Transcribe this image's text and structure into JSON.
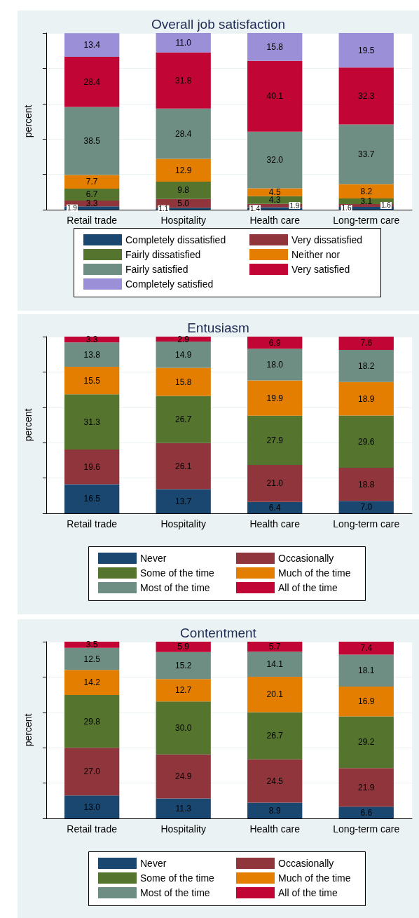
{
  "chart_data": [
    {
      "type": "bar",
      "stacked": true,
      "title": "Overall job satisfaction",
      "ylabel": "percent",
      "categories": [
        "Retail trade",
        "Hospitality",
        "Health care",
        "Long-term care"
      ],
      "ylim": [
        0,
        100
      ],
      "yticks": [
        {
          "value": 0,
          "label": null
        },
        {
          "value": 20,
          "label": null
        },
        {
          "value": 40,
          "label": null
        },
        {
          "value": 60,
          "label": null
        },
        {
          "value": 80,
          "label": null
        },
        {
          "value": 100,
          "label": null
        }
      ],
      "tick_labels": "x",
      "grid": "y",
      "legend": "bottom",
      "series": [
        {
          "name": "Completely dissatisfied",
          "color": "#1a476f",
          "values": [
            1.9,
            1.1,
            1.4,
            1.6
          ],
          "value_labels": [
            "1.9",
            "1.1",
            "1.4",
            "1.6"
          ]
        },
        {
          "name": "Very dissatisfied",
          "color": "#90353b",
          "values": [
            3.3,
            5.0,
            1.9,
            1.6
          ],
          "value_labels": [
            "3.3",
            "5.0",
            "1.9",
            "1.6"
          ]
        },
        {
          "name": "Fairly dissatisfied",
          "color": "#55752f",
          "values": [
            6.7,
            9.8,
            4.3,
            3.1
          ],
          "value_labels": [
            "6.7",
            "9.8",
            "4.3",
            "3.1"
          ]
        },
        {
          "name": "Neither nor",
          "color": "#e37e00",
          "values": [
            7.7,
            12.9,
            4.5,
            8.2
          ],
          "value_labels": [
            "7.7",
            "12.9",
            "4.5",
            "8.2"
          ]
        },
        {
          "name": "Fairly satisfied",
          "color": "#6e8e84",
          "values": [
            38.5,
            28.4,
            32.0,
            33.7
          ],
          "value_labels": [
            "38.5",
            "28.4",
            "32.0",
            "33.7"
          ]
        },
        {
          "name": "Very satisfied",
          "color": "#c10534",
          "values": [
            28.4,
            31.8,
            40.1,
            32.3
          ],
          "value_labels": [
            "28.4",
            "31.8",
            "40.1",
            "32.3"
          ]
        },
        {
          "name": "Completely satisfied",
          "color": "#9b8fd8",
          "values": [
            13.4,
            11.0,
            15.8,
            19.5
          ],
          "value_labels": [
            "13.4",
            "11.0",
            "15.8",
            "19.5"
          ]
        }
      ]
    },
    {
      "type": "bar",
      "stacked": true,
      "title": "Entusiasm",
      "ylabel": "percent",
      "categories": [
        "Retail trade",
        "Hospitality",
        "Health care",
        "Long-term care"
      ],
      "ylim": [
        0,
        100
      ],
      "yticks": [
        {
          "value": 0,
          "label": null
        },
        {
          "value": 20,
          "label": null
        },
        {
          "value": 40,
          "label": null
        },
        {
          "value": 60,
          "label": null
        },
        {
          "value": 80,
          "label": null
        },
        {
          "value": 100,
          "label": null
        }
      ],
      "tick_labels": "x",
      "grid": "y",
      "legend": "bottom",
      "series": [
        {
          "name": "Never",
          "color": "#1a476f",
          "values": [
            16.5,
            13.7,
            6.4,
            7.0
          ],
          "value_labels": [
            "16.5",
            "13.7",
            "6.4",
            "7.0"
          ]
        },
        {
          "name": "Occasionally",
          "color": "#90353b",
          "values": [
            19.6,
            26.1,
            21.0,
            18.8
          ],
          "value_labels": [
            "19.6",
            "26.1",
            "21.0",
            "18.8"
          ]
        },
        {
          "name": "Some of the time",
          "color": "#55752f",
          "values": [
            31.3,
            26.7,
            27.9,
            29.6
          ],
          "value_labels": [
            "31.3",
            "26.7",
            "27.9",
            "29.6"
          ]
        },
        {
          "name": "Much of the time",
          "color": "#e37e00",
          "values": [
            15.5,
            15.8,
            19.9,
            18.9
          ],
          "value_labels": [
            "15.5",
            "15.8",
            "19.9",
            "18.9"
          ]
        },
        {
          "name": "Most of the time",
          "color": "#6e8e84",
          "values": [
            13.8,
            14.9,
            18.0,
            18.2
          ],
          "value_labels": [
            "13.8",
            "14.9",
            "18.0",
            "18.2"
          ]
        },
        {
          "name": "All of the time",
          "color": "#c10534",
          "values": [
            3.3,
            2.9,
            6.9,
            7.6
          ],
          "value_labels": [
            "3.3",
            "2.9",
            "6.9",
            "7.6"
          ]
        }
      ]
    },
    {
      "type": "bar",
      "stacked": true,
      "title": "Contentment",
      "ylabel": "percent",
      "categories": [
        "Retail trade",
        "Hospitality",
        "Health care",
        "Long-term care"
      ],
      "ylim": [
        0,
        100
      ],
      "yticks": [
        {
          "value": 0,
          "label": null
        },
        {
          "value": 20,
          "label": null
        },
        {
          "value": 40,
          "label": null
        },
        {
          "value": 60,
          "label": null
        },
        {
          "value": 80,
          "label": null
        },
        {
          "value": 100,
          "label": null
        }
      ],
      "tick_labels": "x",
      "grid": "y",
      "legend": "bottom",
      "series": [
        {
          "name": "Never",
          "color": "#1a476f",
          "values": [
            13.0,
            11.3,
            8.9,
            6.6
          ],
          "value_labels": [
            "13.0",
            "11.3",
            "8.9",
            "6.6"
          ]
        },
        {
          "name": "Occasionally",
          "color": "#90353b",
          "values": [
            27.0,
            24.9,
            24.5,
            21.9
          ],
          "value_labels": [
            "27.0",
            "24.9",
            "24.5",
            "21.9"
          ]
        },
        {
          "name": "Some of the time",
          "color": "#55752f",
          "values": [
            29.8,
            30.0,
            26.7,
            29.2
          ],
          "value_labels": [
            "29.8",
            "30.0",
            "26.7",
            "29.2"
          ]
        },
        {
          "name": "Much of the time",
          "color": "#e37e00",
          "values": [
            14.2,
            12.7,
            20.1,
            16.9
          ],
          "value_labels": [
            "14.2",
            "12.7",
            "20.1",
            "16.9"
          ]
        },
        {
          "name": "Most of the time",
          "color": "#6e8e84",
          "values": [
            12.5,
            15.2,
            14.1,
            18.1
          ],
          "value_labels": [
            "12.5",
            "15.2",
            "14.1",
            "18.1"
          ]
        },
        {
          "name": "All of the time",
          "color": "#c10534",
          "values": [
            3.5,
            5.9,
            5.7,
            7.4
          ],
          "value_labels": [
            "3.5",
            "5.9",
            "5.7",
            "7.4"
          ]
        }
      ]
    }
  ]
}
